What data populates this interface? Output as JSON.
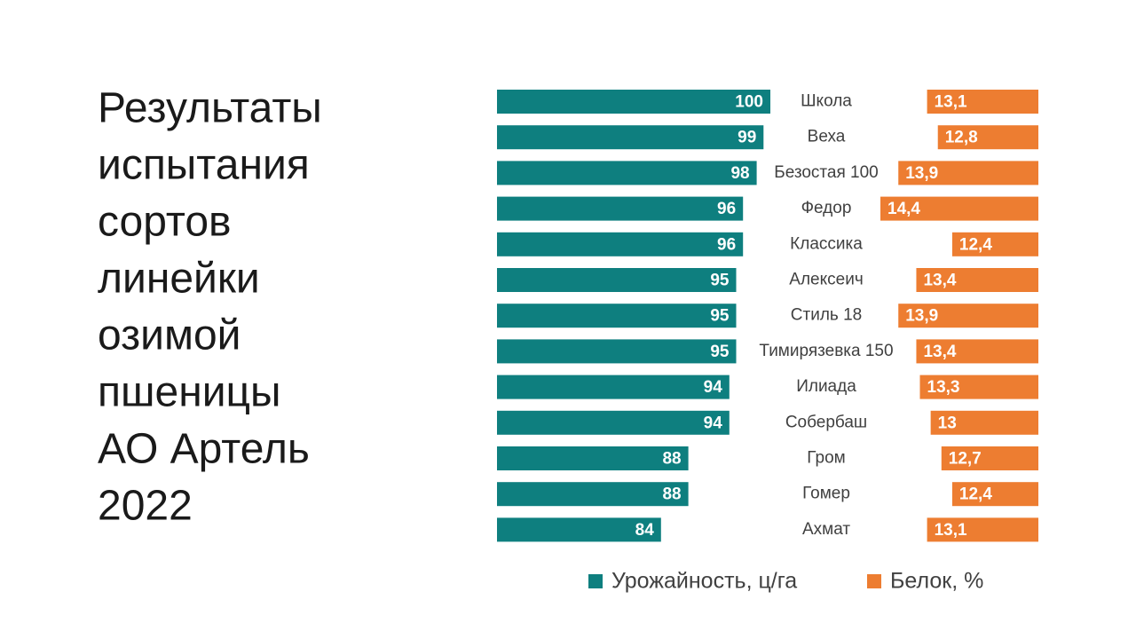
{
  "chart_data": {
    "type": "bar",
    "title": [
      "Результаты",
      "испытания",
      "сортов",
      "линейки",
      "озимой",
      "пшеницы",
      "АО Артель",
      "2022"
    ],
    "categories": [
      "Школа",
      "Веха",
      "Безостая 100",
      "Федор",
      "Классика",
      "Алексеич",
      "Стиль 18",
      "Тимирязевка 150",
      "Илиада",
      "Собербаш",
      "Гром",
      "Гомер",
      "Ахмат"
    ],
    "series": [
      {
        "name": "Урожайность, ц/га",
        "color": "#0e7f7f",
        "values": [
          100,
          99,
          98,
          96,
          96,
          95,
          95,
          95,
          94,
          94,
          88,
          88,
          84
        ]
      },
      {
        "name": "Белок, %",
        "color": "#ed7d31",
        "axis": "x2",
        "values": [
          13.1,
          12.8,
          13.9,
          14.4,
          12.4,
          13.4,
          13.9,
          13.4,
          13.3,
          13,
          12.7,
          12.4,
          13.1
        ],
        "value_labels": [
          "13,1",
          "12,8",
          "13,9",
          "14,4",
          "12,4",
          "13,4",
          "13,9",
          "13,4",
          "13,3",
          "13",
          "12,7",
          "12,4",
          "13,1"
        ]
      }
    ],
    "xlim": [
      60,
      100
    ],
    "x2lim": [
      10,
      14.4
    ],
    "legend": "bottom"
  }
}
